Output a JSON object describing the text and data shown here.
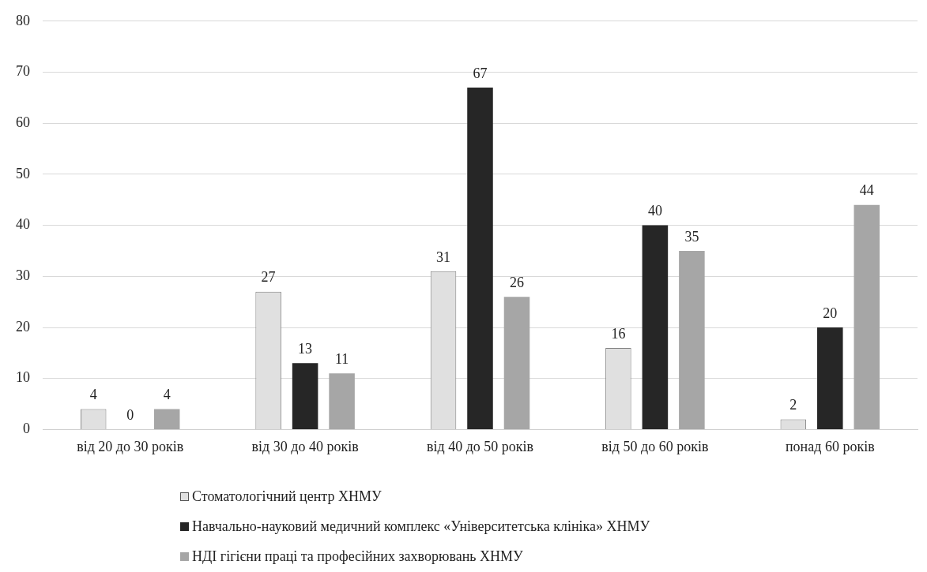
{
  "chart_data": {
    "type": "bar",
    "categories": [
      "від 20 до 30 років",
      "від 30 до 40 років",
      "від 40 до 50 років",
      "від 50 до 60 років",
      "понад 60 років"
    ],
    "series": [
      {
        "name": "Стоматологічний центр ХНМУ",
        "color": "#e0e0e0",
        "values": [
          4,
          27,
          31,
          16,
          2
        ]
      },
      {
        "name": "Навчально-науковий медичний комплекс «Університетська клініка» ХНМУ",
        "color": "#262626",
        "values": [
          0,
          13,
          67,
          40,
          20
        ]
      },
      {
        "name": "НДІ гігієни праці та професійних захворювань ХНМУ",
        "color": "#a6a6a6",
        "values": [
          4,
          11,
          26,
          35,
          44
        ]
      }
    ],
    "ylim": [
      0,
      80
    ],
    "yticks": [
      0,
      10,
      20,
      30,
      40,
      50,
      60,
      70,
      80
    ],
    "grid": "y",
    "data_labels": true,
    "legend": "bottom"
  }
}
